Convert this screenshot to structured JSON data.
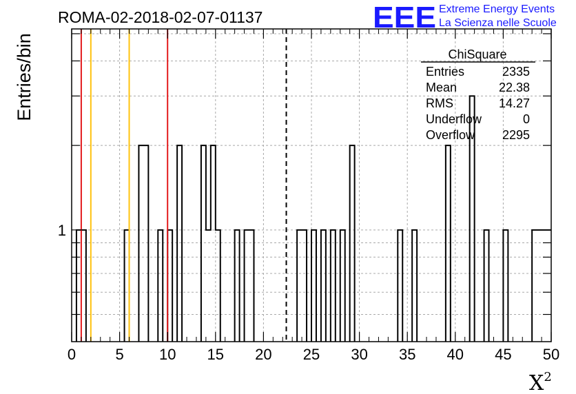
{
  "chart_data": {
    "type": "histogram",
    "title": "ROMA-02-2018-02-07-01137",
    "xlabel": "X",
    "xlabel_superscript": "2",
    "ylabel": "Entries/bin",
    "xlim": [
      0,
      50
    ],
    "ylim": [
      0.4,
      5.2
    ],
    "yscale": "log",
    "x_ticks": [
      "0",
      "5",
      "10",
      "15",
      "20",
      "25",
      "30",
      "35",
      "40",
      "45",
      "50"
    ],
    "y_tick_labels": [
      {
        "value": 1,
        "label": "1"
      }
    ],
    "grid": true,
    "bin_width": 0.5,
    "bins": [
      {
        "x": 0.5,
        "count": 1
      },
      {
        "x": 1.0,
        "count": 1
      },
      {
        "x": 5.5,
        "count": 1
      },
      {
        "x": 7.0,
        "count": 2
      },
      {
        "x": 7.5,
        "count": 2
      },
      {
        "x": 9.0,
        "count": 1
      },
      {
        "x": 10.0,
        "count": 1
      },
      {
        "x": 11.0,
        "count": 2
      },
      {
        "x": 13.5,
        "count": 2
      },
      {
        "x": 14.0,
        "count": 1
      },
      {
        "x": 14.5,
        "count": 2
      },
      {
        "x": 15.0,
        "count": 1
      },
      {
        "x": 17.0,
        "count": 1
      },
      {
        "x": 18.0,
        "count": 1
      },
      {
        "x": 18.5,
        "count": 1
      },
      {
        "x": 23.5,
        "count": 1
      },
      {
        "x": 24.0,
        "count": 1
      },
      {
        "x": 25.0,
        "count": 1
      },
      {
        "x": 26.0,
        "count": 1
      },
      {
        "x": 27.0,
        "count": 1
      },
      {
        "x": 28.0,
        "count": 1
      },
      {
        "x": 29.0,
        "count": 2
      },
      {
        "x": 34.0,
        "count": 1
      },
      {
        "x": 35.5,
        "count": 1
      },
      {
        "x": 39.0,
        "count": 2
      },
      {
        "x": 41.5,
        "count": 3
      },
      {
        "x": 43.0,
        "count": 1
      },
      {
        "x": 45.0,
        "count": 1
      },
      {
        "x": 48.0,
        "count": 1
      },
      {
        "x": 48.5,
        "count": 1
      },
      {
        "x": 49.0,
        "count": 1
      },
      {
        "x": 49.5,
        "count": 1
      }
    ],
    "vertical_lines": [
      {
        "x": 1.0,
        "color": "#e31a1c",
        "style": "solid"
      },
      {
        "x": 2.0,
        "color": "#ffc20e",
        "style": "solid"
      },
      {
        "x": 6.0,
        "color": "#ffc20e",
        "style": "solid"
      },
      {
        "x": 10.0,
        "color": "#e31a1c",
        "style": "solid"
      },
      {
        "x": 22.38,
        "color": "#000000",
        "style": "dashed"
      }
    ],
    "stats": {
      "name": "ChiSquare",
      "rows": [
        {
          "label": "Entries",
          "value": "2335"
        },
        {
          "label": "Mean",
          "value": "22.38"
        },
        {
          "label": "RMS",
          "value": "14.27"
        },
        {
          "label": "Underflow",
          "value": "0"
        },
        {
          "label": "Overflow",
          "value": "2295"
        }
      ]
    }
  },
  "logo": {
    "text": "EEE",
    "line1": "Extreme Energy Events",
    "line2": "La Scienza nelle Scuole",
    "color": "#1a1aff"
  }
}
